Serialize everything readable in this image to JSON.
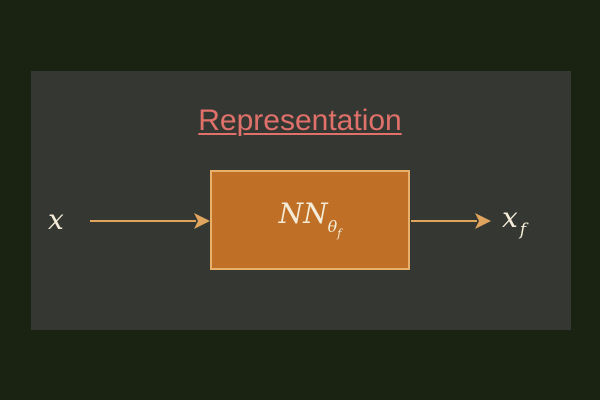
{
  "diagram": {
    "title": "Representation",
    "input_label": "x",
    "block": {
      "main": "NN",
      "sub": "θ",
      "subsub": "f"
    },
    "output_label": {
      "main": "x",
      "sub": "f"
    },
    "edges": [
      {
        "from": "x",
        "to": "NN_θf"
      },
      {
        "from": "NN_θf",
        "to": "x_f"
      }
    ]
  },
  "colors": {
    "page_background": "#1a2212",
    "panel_background": "#353732",
    "title": "#e0706a",
    "block_fill": "#bf7026",
    "block_border": "#e8b06a",
    "arrow": "#dfa55e",
    "math_text": "#f4ecd8"
  }
}
